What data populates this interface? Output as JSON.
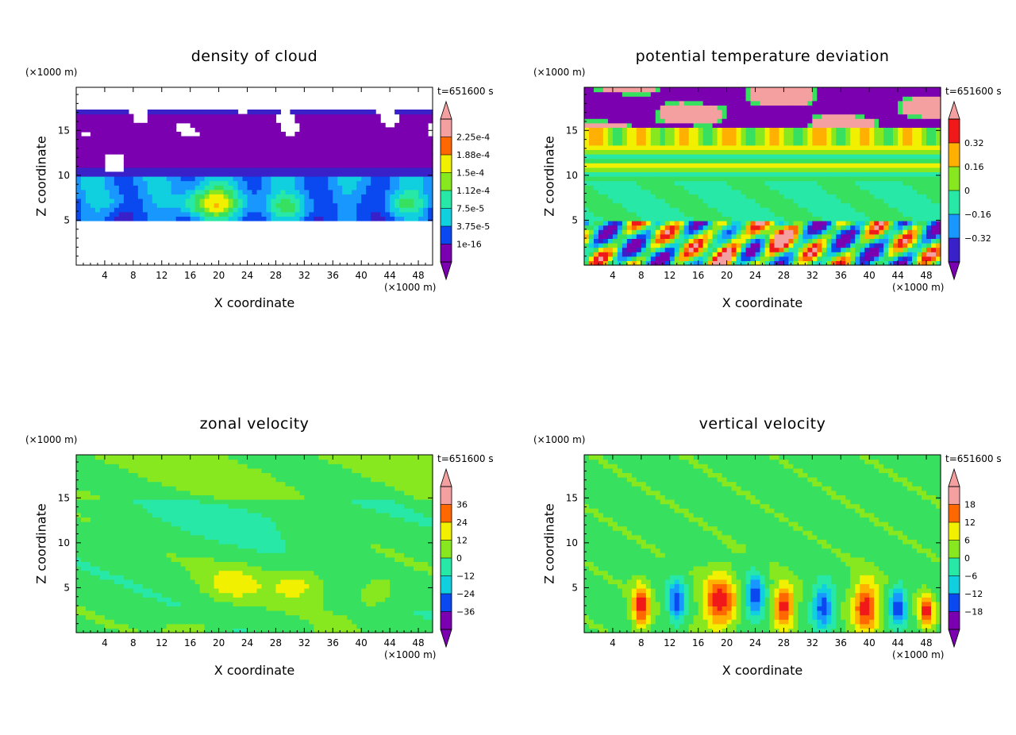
{
  "panels": [
    {
      "title": "density of cloud",
      "time_label": "t=651600 s",
      "y_units": "(×1000 m)",
      "x_units": "(×1000 m)",
      "xlabel": "X coordinate",
      "ylabel": "Z coordinate",
      "colorbar_labels": [
        "2.25e-4",
        "1.88e-4",
        "1.5e-4",
        "1.12e-4",
        "7.5e-5",
        "3.75e-5",
        "1e-16"
      ]
    },
    {
      "title": "potential temperature deviation",
      "time_label": "t=651600 s",
      "y_units": "(×1000 m)",
      "x_units": "(×1000 m)",
      "xlabel": "X coordinate",
      "ylabel": "Z coordinate",
      "colorbar_labels": [
        "0.32",
        "0.16",
        "0",
        "−0.16",
        "−0.32"
      ]
    },
    {
      "title": "zonal velocity",
      "time_label": "t=651600 s",
      "y_units": "(×1000 m)",
      "x_units": "(×1000 m)",
      "xlabel": "X coordinate",
      "ylabel": "Z coordinate",
      "colorbar_labels": [
        "36",
        "24",
        "12",
        "0",
        "−12",
        "−24",
        "−36"
      ]
    },
    {
      "title": "vertical velocity",
      "time_label": "t=651600 s",
      "y_units": "(×1000 m)",
      "x_units": "(×1000 m)",
      "xlabel": "X coordinate",
      "ylabel": "Z coordinate",
      "colorbar_labels": [
        "18",
        "12",
        "6",
        "0",
        "−6",
        "−12",
        "−18"
      ]
    }
  ],
  "chart_data": [
    {
      "type": "heatmap",
      "title": "density of cloud",
      "xlabel": "X coordinate",
      "ylabel": "Z coordinate",
      "x_ticks": [
        4,
        8,
        12,
        16,
        20,
        24,
        28,
        32,
        36,
        40,
        44,
        48
      ],
      "y_ticks": [
        5,
        10,
        15
      ],
      "xlim": [
        0,
        50
      ],
      "ylim": [
        0,
        19.8
      ],
      "colorbar": {
        "labels": [
          "2.25e-4",
          "1.88e-4",
          "1.5e-4",
          "1.12e-4",
          "7.5e-5",
          "3.75e-5",
          "1e-16"
        ]
      },
      "description_of_field": "cloud present between about z=5 and z=17.5; highest densities (up to ~1.5e-4) near z=5-9 around x=16-22"
    },
    {
      "type": "heatmap",
      "title": "potential temperature deviation",
      "xlabel": "X coordinate",
      "ylabel": "Z coordinate",
      "x_ticks": [
        4,
        8,
        12,
        16,
        20,
        24,
        28,
        32,
        36,
        40,
        44,
        48
      ],
      "y_ticks": [
        5,
        10,
        15
      ],
      "xlim": [
        0,
        50
      ],
      "ylim": [
        0,
        19.8
      ],
      "colorbar": {
        "labels": [
          "0.32",
          "0.16",
          "0",
          "−0.16",
          "−0.32"
        ]
      }
    },
    {
      "type": "heatmap",
      "title": "zonal velocity",
      "xlabel": "X coordinate",
      "ylabel": "Z coordinate",
      "x_ticks": [
        4,
        8,
        12,
        16,
        20,
        24,
        28,
        32,
        36,
        40,
        44,
        48
      ],
      "y_ticks": [
        5,
        10,
        15
      ],
      "xlim": [
        0,
        50
      ],
      "ylim": [
        0,
        19.8
      ],
      "colorbar": {
        "labels": [
          "36",
          "24",
          "12",
          "0",
          "−12",
          "−24",
          "−36"
        ]
      }
    },
    {
      "type": "heatmap",
      "title": "vertical velocity",
      "xlabel": "X coordinate",
      "ylabel": "Z coordinate",
      "x_ticks": [
        4,
        8,
        12,
        16,
        20,
        24,
        28,
        32,
        36,
        40,
        44,
        48
      ],
      "y_ticks": [
        5,
        10,
        15
      ],
      "xlim": [
        0,
        50
      ],
      "ylim": [
        0,
        19.8
      ],
      "colorbar": {
        "labels": [
          "18",
          "12",
          "6",
          "0",
          "−6",
          "−12",
          "−18"
        ]
      }
    }
  ],
  "colors": {
    "palette": [
      "#7a00b0",
      "#3a20c8",
      "#0a48f0",
      "#1898ff",
      "#10d0e0",
      "#28e8a8",
      "#38e060",
      "#88e820",
      "#f0f000",
      "#ffb000",
      "#ff6800",
      "#f01818",
      "#f4a0a0"
    ]
  }
}
